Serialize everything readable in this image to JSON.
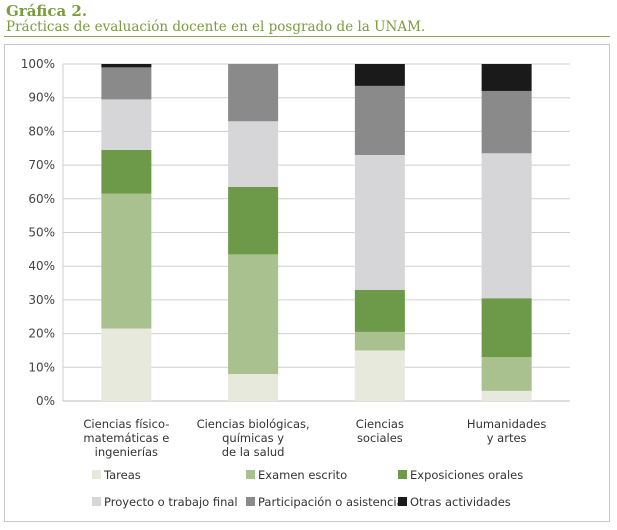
{
  "figure": {
    "title": "Gráfica 2.",
    "subtitle": "Prácticas de evaluación docente en el posgrado de la UNAM."
  },
  "chart_data": {
    "type": "bar",
    "stacked": true,
    "title": "Gráfica 2.",
    "subtitle": "Prácticas de evaluación docente en el posgrado de la UNAM.",
    "xlabel": "",
    "ylabel": "",
    "ylim": [
      0,
      100
    ],
    "y_ticks": [
      "0%",
      "10%",
      "20%",
      "30%",
      "40%",
      "50%",
      "60%",
      "70%",
      "80%",
      "90%",
      "100%"
    ],
    "grid": true,
    "legend_position": "bottom",
    "categories": [
      [
        "Ciencias físico-",
        "matemáticas e",
        "ingenierías"
      ],
      [
        "Ciencias biológicas,",
        "químicas y",
        "de la salud"
      ],
      [
        "Ciencias",
        "sociales"
      ],
      [
        "Humanidades",
        "y artes"
      ]
    ],
    "series": [
      {
        "name": "Tareas",
        "color": "#e6e9dc",
        "values": [
          21.5,
          8,
          15,
          3
        ]
      },
      {
        "name": "Examen escrito",
        "color": "#a8c18e",
        "values": [
          40,
          35.5,
          5.5,
          10
        ]
      },
      {
        "name": "Exposiciones orales",
        "color": "#6c9a48",
        "values": [
          13,
          20,
          12.5,
          17.5
        ]
      },
      {
        "name": "Proyecto o trabajo final",
        "color": "#d6d6d8",
        "values": [
          15,
          19.5,
          40,
          43
        ]
      },
      {
        "name": "Participación o asistencia",
        "color": "#8a8a8a",
        "values": [
          9.5,
          17,
          20.5,
          18.5
        ]
      },
      {
        "name": "Otras actividades",
        "color": "#1a1a1a",
        "values": [
          1,
          0,
          6.5,
          8
        ]
      }
    ]
  }
}
